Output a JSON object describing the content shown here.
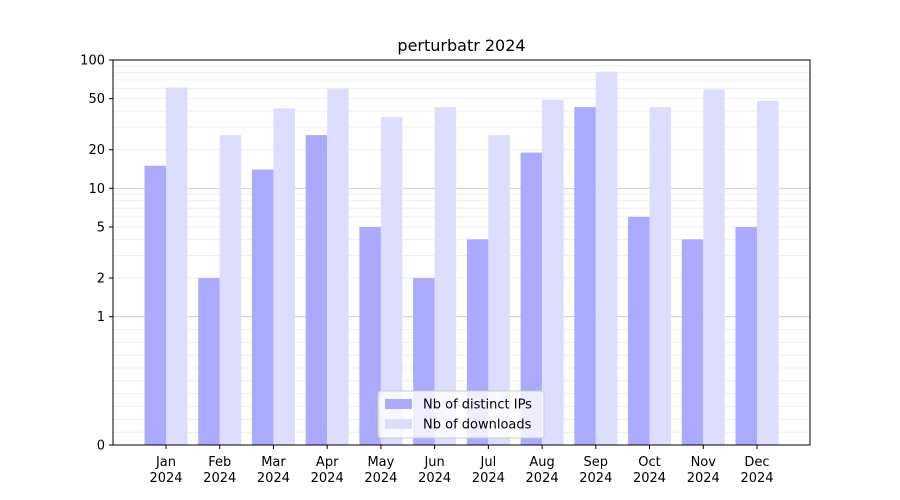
{
  "chart_data": {
    "type": "bar",
    "title": "perturbatr 2024",
    "xlabel": "",
    "ylabel": "",
    "yscale": "symlog",
    "ylim": [
      0,
      100
    ],
    "yticks": [
      0,
      1,
      2,
      5,
      10,
      20,
      50,
      100
    ],
    "categories": [
      "Jan\n2024",
      "Feb\n2024",
      "Mar\n2024",
      "Apr\n2024",
      "May\n2024",
      "Jun\n2024",
      "Jul\n2024",
      "Aug\n2024",
      "Sep\n2024",
      "Oct\n2024",
      "Nov\n2024",
      "Dec\n2024"
    ],
    "category_lines": [
      [
        "Jan",
        "2024"
      ],
      [
        "Feb",
        "2024"
      ],
      [
        "Mar",
        "2024"
      ],
      [
        "Apr",
        "2024"
      ],
      [
        "May",
        "2024"
      ],
      [
        "Jun",
        "2024"
      ],
      [
        "Jul",
        "2024"
      ],
      [
        "Aug",
        "2024"
      ],
      [
        "Sep",
        "2024"
      ],
      [
        "Oct",
        "2024"
      ],
      [
        "Nov",
        "2024"
      ],
      [
        "Dec",
        "2024"
      ]
    ],
    "series": [
      {
        "name": "Nb of distinct IPs",
        "color": "#aaaaff",
        "values": [
          15,
          2,
          14,
          26,
          5,
          2,
          4,
          19,
          43,
          6,
          4,
          5
        ]
      },
      {
        "name": "Nb of downloads",
        "color": "#ddddff",
        "values": [
          61,
          26,
          42,
          60,
          36,
          43,
          26,
          49,
          81,
          43,
          59,
          48
        ]
      }
    ],
    "grid": {
      "major_color": "#c8c8c8",
      "minor_color": "#eeeeee"
    },
    "legend_position": "lower-center"
  }
}
